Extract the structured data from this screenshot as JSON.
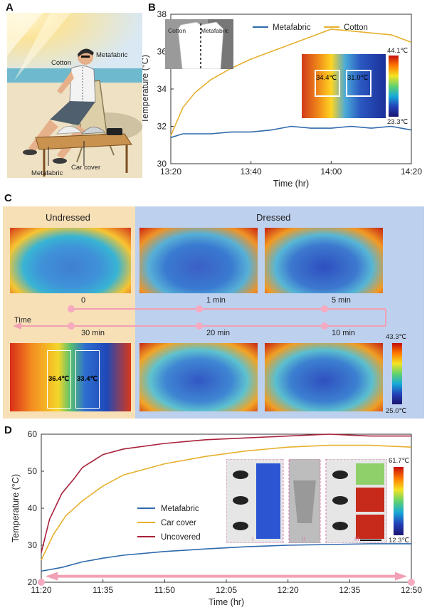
{
  "panels": {
    "a": "A",
    "b": "B",
    "c": "C",
    "d": "D"
  },
  "panel_a": {
    "labels": {
      "cotton": "Cotton",
      "metafabric": "Metafabric",
      "metafabric_bottom": "Metafabric",
      "car_cover": "Car cover"
    }
  },
  "panel_b_inset": {
    "photo_left": "Cotton",
    "photo_right": "Metafabric",
    "temp_left": "34.4℃",
    "temp_right": "31.0℃",
    "scale_max": "44.1℃",
    "scale_min": "23.3℃"
  },
  "panel_c": {
    "undressed": "Undressed",
    "dressed": "Dressed",
    "time_label": "Time",
    "times": [
      "0",
      "1 min",
      "5 min",
      "30 min",
      "20 min",
      "10 min"
    ],
    "temp_cotton": "36.4℃",
    "temp_meta": "33.4℃",
    "scale_max": "43.3℃",
    "scale_min": "25.0℃"
  },
  "panel_d_inset": {
    "scale_max": "61.7℃",
    "scale_min": "12.3℃",
    "group_labels": [
      "I",
      "II",
      "III"
    ]
  },
  "chart_data": [
    {
      "type": "line",
      "panel": "B",
      "xlabel": "Time (hr)",
      "ylabel": "Temperature (°C)",
      "xticks": [
        "13:20",
        "13:40",
        "14:00",
        "14:20"
      ],
      "xlim_min": [
        0,
        60
      ],
      "ylim": [
        30,
        38
      ],
      "yticks": [
        30,
        32,
        34,
        36,
        38
      ],
      "legend": "top",
      "series": [
        {
          "name": "Metafabric",
          "color": "#2f6aad",
          "x": [
            0,
            3,
            6,
            10,
            15,
            20,
            25,
            30,
            35,
            40,
            45,
            50,
            55,
            60
          ],
          "y": [
            31.4,
            31.6,
            31.6,
            31.6,
            31.7,
            31.7,
            31.8,
            32.0,
            31.9,
            31.9,
            32.0,
            31.9,
            32.0,
            31.8
          ]
        },
        {
          "name": "Cotton",
          "color": "#e6b02e",
          "x": [
            0,
            3,
            6,
            10,
            15,
            20,
            25,
            30,
            35,
            40,
            45,
            50,
            55,
            60
          ],
          "y": [
            31.5,
            33.0,
            33.8,
            34.5,
            35.1,
            35.6,
            36.0,
            36.4,
            36.8,
            37.2,
            37.1,
            37.0,
            36.9,
            36.5
          ]
        }
      ]
    },
    {
      "type": "line",
      "panel": "D",
      "xlabel": "Time (hr)",
      "ylabel": "Temperature (°C)",
      "xticks": [
        "11:20",
        "11:35",
        "11:50",
        "12:05",
        "12:20",
        "12:35",
        "12:50"
      ],
      "xlim_min": [
        0,
        90
      ],
      "ylim": [
        20,
        60
      ],
      "yticks": [
        20,
        30,
        40,
        50,
        60
      ],
      "legend": "center-left",
      "series": [
        {
          "name": "Metafabric",
          "color": "#2f6aad",
          "x": [
            0,
            5,
            10,
            15,
            20,
            30,
            40,
            50,
            60,
            70,
            80,
            90
          ],
          "y": [
            23,
            24,
            25.5,
            26.5,
            27.3,
            28.3,
            29.0,
            29.6,
            30.0,
            30.2,
            30.4,
            30.4
          ]
        },
        {
          "name": "Car cover",
          "color": "#e6b02e",
          "x": [
            0,
            3,
            6,
            10,
            15,
            20,
            30,
            40,
            50,
            60,
            70,
            80,
            90
          ],
          "y": [
            26,
            33,
            38,
            42,
            46,
            49,
            52,
            54,
            55.5,
            56.5,
            57,
            57,
            56.5
          ]
        },
        {
          "name": "Uncovered",
          "color": "#a8213a",
          "x": [
            0,
            2,
            5,
            8,
            10,
            15,
            20,
            30,
            40,
            50,
            60,
            70,
            80,
            90
          ],
          "y": [
            28,
            37,
            44,
            48,
            51,
            54.5,
            56,
            57.5,
            58.5,
            59,
            59.5,
            60,
            59.5,
            59.5
          ]
        }
      ]
    }
  ]
}
